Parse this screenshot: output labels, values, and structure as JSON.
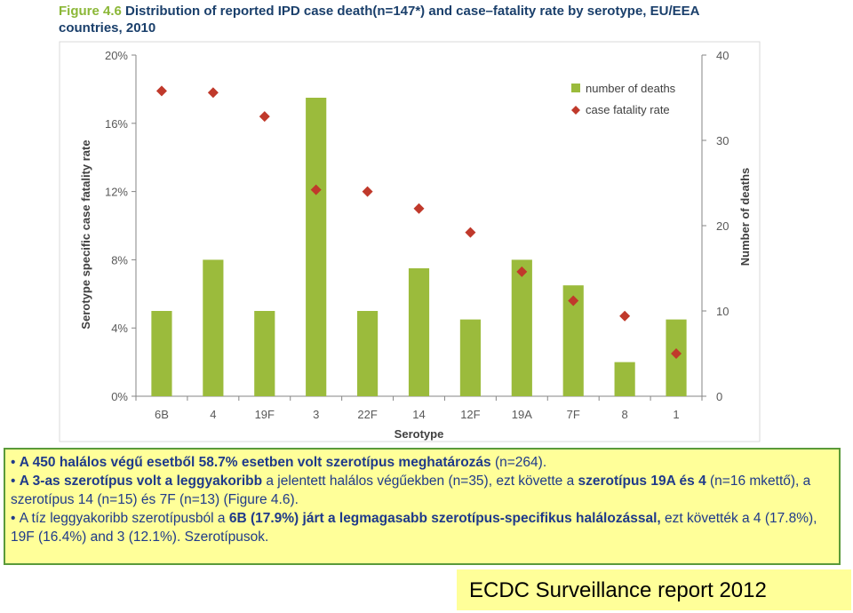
{
  "figure": {
    "label": "Figure 4.6",
    "title": "Distribution of reported IPD case death(n=147*) and case–fatality rate by serotype, EU/EEA countries, 2010"
  },
  "chart_data": {
    "type": "bar",
    "title": "Distribution of reported IPD case death(n=147*) and case–fatality rate by serotype, EU/EEA countries, 2010",
    "categories": [
      "6B",
      "4",
      "19F",
      "3",
      "22F",
      "14",
      "12F",
      "19A",
      "7F",
      "8",
      "1"
    ],
    "series": [
      {
        "name": "number of deaths",
        "kind": "bar",
        "axis": "right",
        "color": "#9bbb3c",
        "values": [
          10,
          16,
          10,
          35,
          10,
          15,
          9,
          16,
          13,
          4,
          9
        ]
      },
      {
        "name": "case fatality rate",
        "kind": "scatter",
        "axis": "left",
        "color": "#c0392b",
        "values": [
          17.9,
          17.8,
          16.4,
          12.1,
          12.0,
          11.0,
          9.6,
          7.3,
          5.6,
          4.7,
          2.5
        ]
      }
    ],
    "xlabel": "Serotype",
    "ylabel_left": "Serotype specific case fatality rate",
    "ylabel_right": "Number of deaths",
    "ylim_left": [
      0,
      20
    ],
    "ylim_right": [
      0,
      40
    ],
    "yticks_left": [
      "0%",
      "4%",
      "8%",
      "12%",
      "16%",
      "20%"
    ],
    "yticks_right": [
      "0",
      "10",
      "20",
      "30",
      "40"
    ],
    "legend": {
      "position": "top-right",
      "items": [
        "number of deaths",
        "case fatality rate"
      ]
    },
    "grid": false
  },
  "summary": {
    "b1_p1": "A 450 halálos végű esetből  58.7% esetben volt  szerotípus  meghatározás",
    "b1_p2": " (n=264).",
    "b2_p1": "A  3-as szerotípus volt a leggyakoribb",
    "b2_p2": " a jelentett halálos végűekben (n=35), ezt követte a ",
    "b2_p3": "szerotípus 19A és 4",
    "b2_p4": " (n=16 mkettő), a szerotípus  14 (n=15) és 7F (n=13) (Figure 4.6).",
    "b3_p1": "A tíz leggyakoribb szerotípusból a ",
    "b3_p2": " 6B (17.9%) járt a legmagasabb szerotípus-specifikus halálozással,",
    "b3_p3": " ezt követték a 4 (17.8%), 19F (16.4%) and 3 (12.1%). Szerotípusok."
  },
  "source": "ECDC Surveillance report 2012"
}
